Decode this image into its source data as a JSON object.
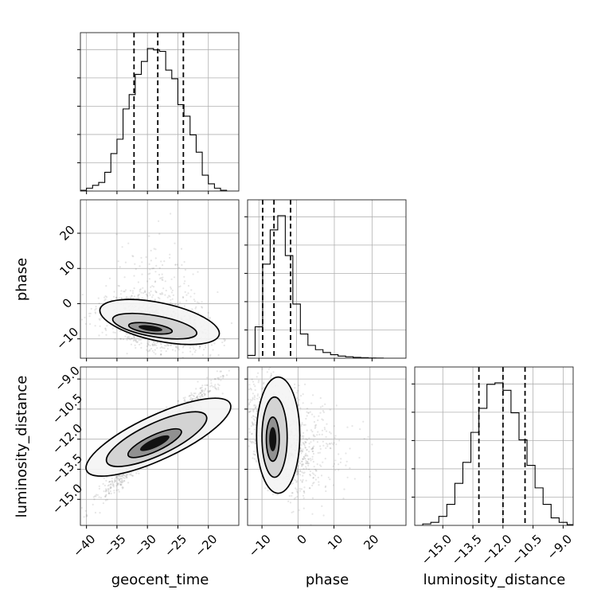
{
  "chart_data": {
    "type": "corner",
    "parameters": [
      "geocent_time",
      "phase",
      "luminosity_distance"
    ],
    "grid": true,
    "panels": [
      {
        "type": "histogram",
        "parameter": "geocent_time",
        "row": 0,
        "col": 0,
        "xlim": [
          -41,
          -15
        ],
        "quantile_lines": [
          -32.2,
          -28.3,
          -24.1
        ],
        "bins": {
          "edges": [
            -41,
            -40,
            -39,
            -38,
            -37,
            -36,
            -35,
            -34,
            -33,
            -32,
            -31,
            -30,
            -29,
            -28,
            -27,
            -26,
            -25,
            -24,
            -23,
            -22,
            -21,
            -20,
            -19,
            -18,
            -17,
            -16,
            -15
          ],
          "counts": [
            0.005,
            0.02,
            0.04,
            0.06,
            0.13,
            0.26,
            0.36,
            0.57,
            0.67,
            0.81,
            0.9,
            0.99,
            0.98,
            0.97,
            0.84,
            0.78,
            0.6,
            0.52,
            0.39,
            0.27,
            0.11,
            0.05,
            0.02,
            0.005,
            0.0,
            0.0
          ]
        }
      },
      {
        "type": "histogram",
        "parameter": "phase",
        "row": 1,
        "col": 1,
        "xlim": [
          -13,
          29
        ],
        "quantile_lines": [
          -9.0,
          -6.0,
          -1.6
        ],
        "bins": {
          "edges": [
            -13,
            -11,
            -9,
            -7,
            -5,
            -3,
            -1,
            1,
            3,
            5,
            7,
            9,
            11,
            13,
            15,
            17,
            19,
            21,
            23,
            25,
            27,
            29
          ],
          "counts": [
            0.02,
            0.22,
            0.66,
            0.9,
            1.0,
            0.72,
            0.38,
            0.17,
            0.09,
            0.06,
            0.04,
            0.025,
            0.015,
            0.01,
            0.006,
            0.004,
            0.002,
            0.001,
            0.0,
            0.0,
            0.0
          ]
        }
      },
      {
        "type": "histogram",
        "parameter": "luminosity_distance",
        "row": 2,
        "col": 2,
        "xlim": [
          -16.4,
          -8.5
        ],
        "quantile_lines": [
          -13.2,
          -12.0,
          -10.9
        ],
        "bins": {
          "edges": [
            -16.4,
            -16.0,
            -15.6,
            -15.2,
            -14.8,
            -14.4,
            -14.0,
            -13.6,
            -13.2,
            -12.8,
            -12.4,
            -12.0,
            -11.6,
            -11.2,
            -10.8,
            -10.4,
            -10.0,
            -9.6,
            -9.2,
            -8.8,
            -8.5
          ],
          "counts": [
            0.0,
            0.01,
            0.02,
            0.06,
            0.14,
            0.28,
            0.42,
            0.62,
            0.78,
            0.94,
            0.95,
            0.9,
            0.75,
            0.57,
            0.4,
            0.25,
            0.14,
            0.05,
            0.02,
            0.005
          ]
        }
      },
      {
        "type": "scatter_density",
        "row": 1,
        "col": 0,
        "x": "geocent_time",
        "y": "phase",
        "xlim": [
          -41,
          -15
        ],
        "ylim": [
          -15.5,
          29.5
        ],
        "mean": [
          -28.4,
          -6.0
        ],
        "sd": [
          4.2,
          3.8
        ],
        "rho": -0.45,
        "skew_y": 6.0,
        "contours": [
          {
            "level": 1,
            "cx": -29.5,
            "cy": -7.0,
            "rx": 3.6,
            "ry": 1.4,
            "rot": -8
          },
          {
            "level": 2,
            "cx": -28.8,
            "cy": -6.4,
            "rx": 7.0,
            "ry": 3.0,
            "rot": -10
          },
          {
            "level": 3,
            "cx": -28.0,
            "cy": -5.2,
            "rx": 10.0,
            "ry": 5.4,
            "rot": -12
          }
        ]
      },
      {
        "type": "scatter_density",
        "row": 2,
        "col": 0,
        "x": "geocent_time",
        "y": "luminosity_distance",
        "xlim": [
          -41,
          -15
        ],
        "ylim": [
          -16.3,
          -8.4
        ],
        "mean": [
          -28.4,
          -12.0
        ],
        "sd": [
          4.2,
          1.3
        ],
        "rho": 0.97,
        "skew_y": 0,
        "contours": [
          {
            "level": 1,
            "cx": -28.8,
            "cy": -12.2,
            "rx": 4.8,
            "ry": 0.4,
            "rot": 25
          },
          {
            "level": 2,
            "cx": -28.5,
            "cy": -12.0,
            "rx": 9.0,
            "ry": 0.8,
            "rot": 25
          },
          {
            "level": 3,
            "cx": -28.2,
            "cy": -11.9,
            "rx": 13.0,
            "ry": 1.1,
            "rot": 25
          }
        ]
      },
      {
        "type": "scatter_density",
        "row": 2,
        "col": 1,
        "x": "phase",
        "y": "luminosity_distance",
        "xlim": [
          -14,
          30
        ],
        "ylim": [
          -16.3,
          -8.4
        ],
        "mean": [
          -5.5,
          -12.0
        ],
        "sd": [
          4.0,
          1.3
        ],
        "rho": -0.45,
        "skew_x": 6.0,
        "contours": [
          {
            "level": 1,
            "cx": -7.0,
            "cy": -12.0,
            "rx": 1.8,
            "ry": 1.1,
            "rot": 0
          },
          {
            "level": 2,
            "cx": -6.5,
            "cy": -11.9,
            "rx": 3.5,
            "ry": 2.0,
            "rot": 0
          },
          {
            "level": 3,
            "cx": -5.5,
            "cy": -11.8,
            "rx": 6.0,
            "ry": 2.9,
            "rot": 0
          }
        ]
      }
    ],
    "ticks": {
      "geocent_time": [
        -40,
        -35,
        -30,
        -25,
        -20
      ],
      "phase_x": [
        -10,
        0,
        10,
        20
      ],
      "phase_y": [
        -10,
        0,
        10,
        20
      ],
      "luminosity_distance": [
        -15.0,
        -13.5,
        -12.0,
        -10.5,
        -9.0
      ]
    },
    "tick_labels": {
      "geocent_time": [
        "−40",
        "−35",
        "−30",
        "−25",
        "−20"
      ],
      "phase_x": [
        "−10",
        "0",
        "10",
        "20"
      ],
      "phase_y": [
        "−10",
        "0",
        "10",
        "20"
      ],
      "luminosity_distance_x": [
        "−15.0",
        "−13.5",
        "−12.0",
        "−10.5",
        "−9.0"
      ],
      "luminosity_distance_y": [
        "−15.0",
        "−13.5",
        "−12.0",
        "−10.5",
        "−9.0"
      ]
    },
    "axis_labels": {
      "x": [
        "geocent_time",
        "phase",
        "luminosity_distance"
      ],
      "y": [
        "phase",
        "luminosity_distance"
      ]
    }
  }
}
